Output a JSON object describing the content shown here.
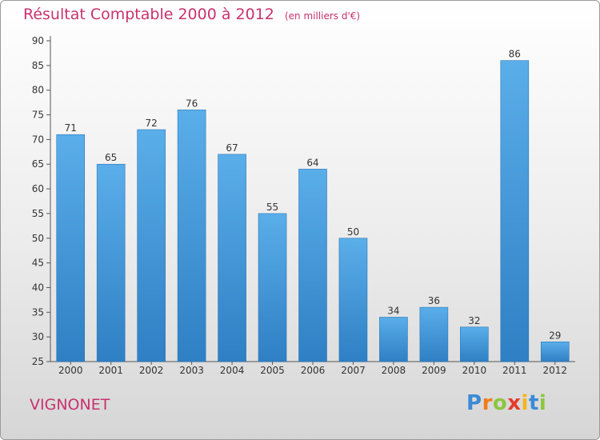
{
  "chart_data": {
    "type": "bar",
    "title": "Résultat Comptable 2000 à 2012",
    "unit": "(en milliers d'€)",
    "categories": [
      "2000",
      "2001",
      "2002",
      "2003",
      "2004",
      "2005",
      "2006",
      "2007",
      "2008",
      "2009",
      "2010",
      "2011",
      "2012"
    ],
    "values": [
      71,
      65,
      72,
      76,
      67,
      55,
      64,
      50,
      34,
      36,
      32,
      86,
      29
    ],
    "ylim": [
      25,
      90
    ],
    "yticks": [
      25,
      30,
      35,
      40,
      45,
      50,
      55,
      60,
      65,
      70,
      75,
      80,
      85,
      90
    ],
    "grid": false,
    "bar_color": "#4a9fe0"
  },
  "commune": "VIGNONET",
  "logo": {
    "letters": [
      "P",
      "r",
      "o",
      "x",
      "i",
      "t",
      "i"
    ],
    "colors": [
      "#3a8ad6",
      "#f07d1a",
      "#8cc63e",
      "#e53b2c",
      "#f6b51e",
      "#3a8ad6",
      "#8cc63e"
    ]
  }
}
